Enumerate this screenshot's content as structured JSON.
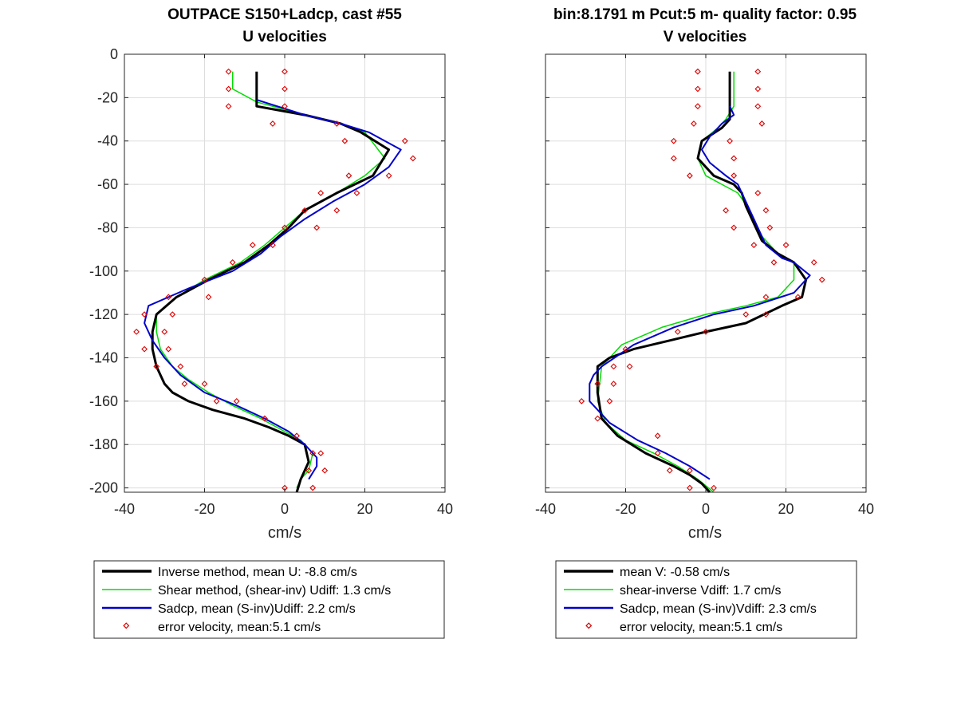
{
  "chart_data": [
    {
      "type": "line",
      "title": "OUTPACE S150+Ladcp, cast #55",
      "subtitle": "U velocities",
      "xlabel": "cm/s",
      "ylabel": "",
      "xlim": [
        -40,
        40
      ],
      "ylim": [
        -202,
        0
      ],
      "x_ticks": [
        "-40",
        "-20",
        "0",
        "20",
        "40"
      ],
      "y_ticks": [
        "0",
        "-20",
        "-40",
        "-60",
        "-80",
        "-100",
        "-120",
        "-140",
        "-160",
        "-180",
        "-200"
      ],
      "grid": true,
      "legend_position": "below",
      "series": [
        {
          "name": "Inverse method, mean U:  -8.8 cm/s",
          "color": "#000000",
          "line_width": 3,
          "marker": "none",
          "x": [
            -7,
            -7,
            -7,
            5,
            14,
            19,
            26,
            22,
            13,
            5,
            1,
            -4,
            -10,
            -19,
            -27,
            -32,
            -33,
            -33,
            -32,
            -30,
            -28,
            -24,
            -18,
            -10,
            -4,
            1,
            5,
            6,
            4,
            3
          ],
          "y": [
            -8,
            -16,
            -24,
            -28,
            -32,
            -36,
            -44,
            -56,
            -64,
            -72,
            -80,
            -88,
            -96,
            -104,
            -112,
            -120,
            -128,
            -136,
            -144,
            -152,
            -156,
            -160,
            -164,
            -168,
            -172,
            -176,
            -180,
            -188,
            -196,
            -202
          ]
        },
        {
          "name": "Shear method, (shear-inv)  Udiff:  1.3 cm/s",
          "color": "#00dd00",
          "line_width": 1.5,
          "marker": "none",
          "x": [
            -13,
            -13,
            -7,
            5,
            14,
            20,
            25,
            20,
            13,
            5,
            0,
            -5,
            -11,
            -20,
            -27,
            -32,
            -32,
            -31,
            -28,
            -24,
            -19,
            -13,
            -6,
            0,
            4,
            7,
            6,
            4,
            3
          ],
          "y": [
            -8,
            -16,
            -22,
            -28,
            -32,
            -36,
            -48,
            -56,
            -64,
            -72,
            -80,
            -88,
            -96,
            -104,
            -112,
            -120,
            -128,
            -136,
            -144,
            -150,
            -156,
            -162,
            -168,
            -174,
            -178,
            -184,
            -192,
            -196,
            -200
          ]
        },
        {
          "name": "Sadcp, mean (S-inv)Udiff: 2.2 cm/s",
          "color": "#0000cc",
          "line_width": 2,
          "marker": "none",
          "x": [
            -7,
            5,
            14,
            21,
            29,
            26,
            20,
            12,
            5,
            -1,
            -6,
            -13,
            -24,
            -34,
            -35,
            -33,
            -30,
            -26,
            -20,
            -12,
            -5,
            1,
            5,
            8,
            8,
            6
          ],
          "y": [
            -21,
            -28,
            -32,
            -36,
            -44,
            -52,
            -60,
            -68,
            -76,
            -84,
            -92,
            -100,
            -108,
            -116,
            -124,
            -132,
            -140,
            -148,
            -156,
            -162,
            -168,
            -174,
            -180,
            -186,
            -190,
            -196
          ]
        },
        {
          "name": "error velocity, mean:5.1 cm/s",
          "color": "#dd0000",
          "line_width": 0,
          "marker": "diamond",
          "x": [
            -14,
            0,
            -14,
            0,
            -14,
            0,
            -3,
            13,
            15,
            30,
            32,
            16,
            26,
            9,
            18,
            5,
            13,
            0,
            8,
            -3,
            -8,
            -20,
            -13,
            -29,
            -19,
            -35,
            -28,
            -37,
            -30,
            -35,
            -29,
            -32,
            -26,
            -25,
            -20,
            -17,
            -12,
            -5,
            -5,
            3,
            7,
            9,
            6,
            10,
            7,
            0
          ],
          "y": [
            -8,
            -8,
            -16,
            -16,
            -24,
            -24,
            -32,
            -32,
            -40,
            -40,
            -48,
            -56,
            -56,
            -64,
            -64,
            -72,
            -72,
            -80,
            -80,
            -88,
            -88,
            -104,
            -96,
            -112,
            -112,
            -120,
            -120,
            -128,
            -128,
            -136,
            -136,
            -144,
            -144,
            -152,
            -152,
            -160,
            -160,
            -168,
            -168,
            -176,
            -184,
            -184,
            -192,
            -192,
            -200,
            -200
          ]
        }
      ]
    },
    {
      "type": "line",
      "title": "bin:8.1791 m  Pcut:5 m- quality factor:  0.95",
      "subtitle": "V velocities",
      "xlabel": "cm/s",
      "ylabel": "",
      "xlim": [
        -40,
        40
      ],
      "ylim": [
        -202,
        0
      ],
      "x_ticks": [
        "-40",
        "-20",
        "0",
        "20",
        "40"
      ],
      "y_ticks": [],
      "grid": true,
      "legend_position": "below",
      "series": [
        {
          "name": "mean V:  -0.58 cm/s",
          "color": "#000000",
          "line_width": 3,
          "marker": "none",
          "x": [
            6,
            6,
            6,
            6,
            4,
            -1,
            -2,
            2,
            7,
            9,
            10,
            12,
            14,
            18,
            22,
            25,
            24,
            19,
            10,
            0,
            -9,
            -18,
            -24,
            -27,
            -27,
            -27,
            -26,
            -22,
            -15,
            -8,
            -4,
            -1,
            1
          ],
          "y": [
            -8,
            -16,
            -24,
            -30,
            -34,
            -40,
            -48,
            -56,
            -60,
            -64,
            -70,
            -78,
            -86,
            -92,
            -96,
            -104,
            -112,
            -116,
            -124,
            -128,
            -132,
            -136,
            -140,
            -144,
            -148,
            -156,
            -168,
            -176,
            -184,
            -190,
            -194,
            -198,
            -202
          ]
        },
        {
          "name": "shear-inverse Vdiff:  1.7 cm/s",
          "color": "#00dd00",
          "line_width": 1.5,
          "marker": "none",
          "x": [
            7,
            7,
            7,
            5,
            3,
            -1,
            -2,
            0,
            4,
            8,
            11,
            14,
            18,
            22,
            22,
            18,
            10,
            0,
            -11,
            -21,
            -26,
            -27,
            -25,
            -20,
            -13,
            -7,
            -2,
            2
          ],
          "y": [
            -8,
            -16,
            -24,
            -30,
            -34,
            -40,
            -48,
            -56,
            -60,
            -64,
            -72,
            -84,
            -92,
            -96,
            -104,
            -112,
            -116,
            -120,
            -126,
            -134,
            -144,
            -160,
            -170,
            -178,
            -184,
            -190,
            -196,
            -202
          ]
        },
        {
          "name": "Sadcp, mean (S-inv)Vdiff: 2.3 cm/s",
          "color": "#0000cc",
          "line_width": 2,
          "marker": "none",
          "x": [
            6,
            7,
            4,
            1,
            -1,
            1,
            5,
            8,
            9,
            11,
            13,
            15,
            19,
            22,
            26,
            22,
            12,
            2,
            -8,
            -18,
            -26,
            -28,
            -29,
            -29,
            -24,
            -17,
            -10,
            -4,
            1
          ],
          "y": [
            -24,
            -28,
            -32,
            -38,
            -44,
            -50,
            -56,
            -60,
            -64,
            -72,
            -80,
            -88,
            -94,
            -96,
            -102,
            -110,
            -116,
            -120,
            -126,
            -134,
            -144,
            -148,
            -152,
            -160,
            -170,
            -178,
            -184,
            -190,
            -196
          ]
        },
        {
          "name": "error velocity, mean:5.1 cm/s",
          "color": "#dd0000",
          "line_width": 0,
          "marker": "diamond",
          "x": [
            -2,
            13,
            -2,
            13,
            -2,
            13,
            -3,
            14,
            -8,
            6,
            -8,
            7,
            -4,
            7,
            13,
            5,
            15,
            7,
            16,
            12,
            20,
            17,
            27,
            29,
            23,
            15,
            10,
            15,
            -7,
            0,
            -20,
            -23,
            -19,
            -27,
            -23,
            -31,
            -24,
            -27,
            -12,
            -12,
            -9,
            -4,
            -4,
            2
          ],
          "y": [
            -8,
            -8,
            -16,
            -16,
            -24,
            -24,
            -32,
            -32,
            -40,
            -40,
            -48,
            -48,
            -56,
            -56,
            -64,
            -72,
            -72,
            -80,
            -80,
            -88,
            -88,
            -96,
            -96,
            -104,
            -112,
            -112,
            -120,
            -120,
            -128,
            -128,
            -136,
            -144,
            -144,
            -152,
            -152,
            -160,
            -160,
            -168,
            -176,
            -184,
            -192,
            -192,
            -200,
            -200
          ]
        }
      ]
    }
  ]
}
